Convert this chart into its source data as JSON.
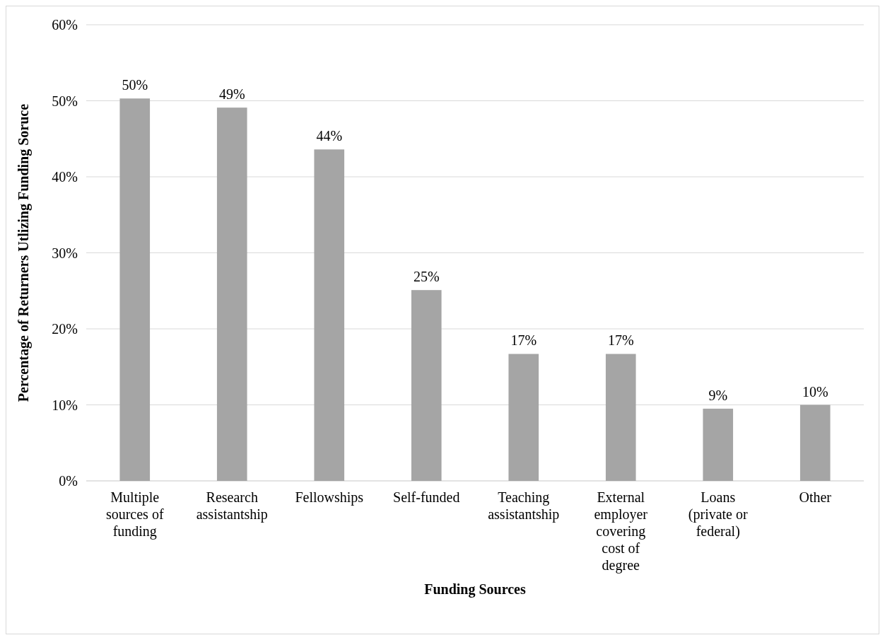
{
  "chart_data": {
    "type": "bar",
    "xlabel": "Funding Sources",
    "ylabel": "Percentage of Returners Utlizing Funding Soruce",
    "categories": [
      "Multiple sources of funding",
      "Research assistantship",
      "Fellowships",
      "Self-funded",
      "Teaching assistantship",
      "External employer covering cost of degree",
      "Loans (private or federal)",
      "Other"
    ],
    "values": [
      50.3,
      49.1,
      43.6,
      25.1,
      16.7,
      16.7,
      9.5,
      10.0
    ],
    "color": "#a5a5a5",
    "value_labels": [
      "50%",
      "49%",
      "44%",
      "25%",
      "17%",
      "17%",
      "9%",
      "10%"
    ],
    "ylim": [
      0,
      60
    ],
    "yticks": [
      {
        "value": 0,
        "label": "0%"
      },
      {
        "value": 10,
        "label": "10%"
      },
      {
        "value": 20,
        "label": "20%"
      },
      {
        "value": 30,
        "label": "30%"
      },
      {
        "value": 40,
        "label": "40%"
      },
      {
        "value": 50,
        "label": "50%"
      },
      {
        "value": 60,
        "label": "60%"
      }
    ],
    "grid": "y"
  }
}
